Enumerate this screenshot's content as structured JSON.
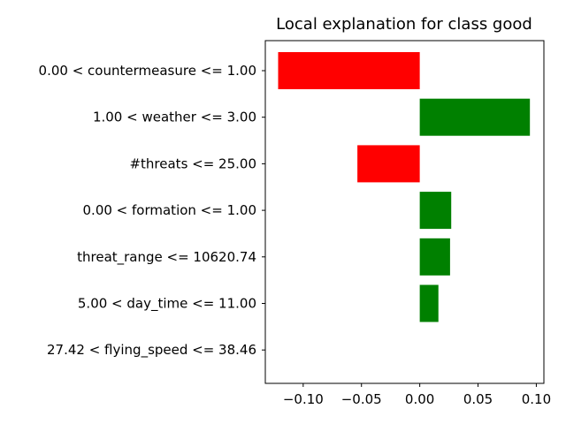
{
  "chart_data": {
    "type": "bar",
    "orientation": "horizontal",
    "title": "Local explanation for class good",
    "xlabel": "",
    "ylabel": "",
    "categories": [
      "0.00 < countermeasure <= 1.00",
      "1.00 < weather <= 3.00",
      "#threats <= 25.00",
      "0.00 < formation <= 1.00",
      "threat_range <= 10620.74",
      "5.00 < day_time <= 11.00",
      "27.42 < flying_speed <= 38.46"
    ],
    "values": [
      -0.1215,
      0.0945,
      -0.0535,
      0.027,
      0.026,
      0.016,
      0.0
    ],
    "colors": [
      "#ff0000",
      "#008000",
      "#ff0000",
      "#008000",
      "#008000",
      "#008000",
      "#008000"
    ],
    "positive_color": "#008000",
    "negative_color": "#ff0000",
    "xlim": [
      -0.1325,
      0.1065
    ],
    "xticks": [
      -0.1,
      -0.05,
      0.0,
      0.05,
      0.1
    ],
    "xtick_labels": [
      "−0.10",
      "−0.05",
      "0.00",
      "0.05",
      "0.10"
    ],
    "grid": false,
    "legend": "none"
  }
}
